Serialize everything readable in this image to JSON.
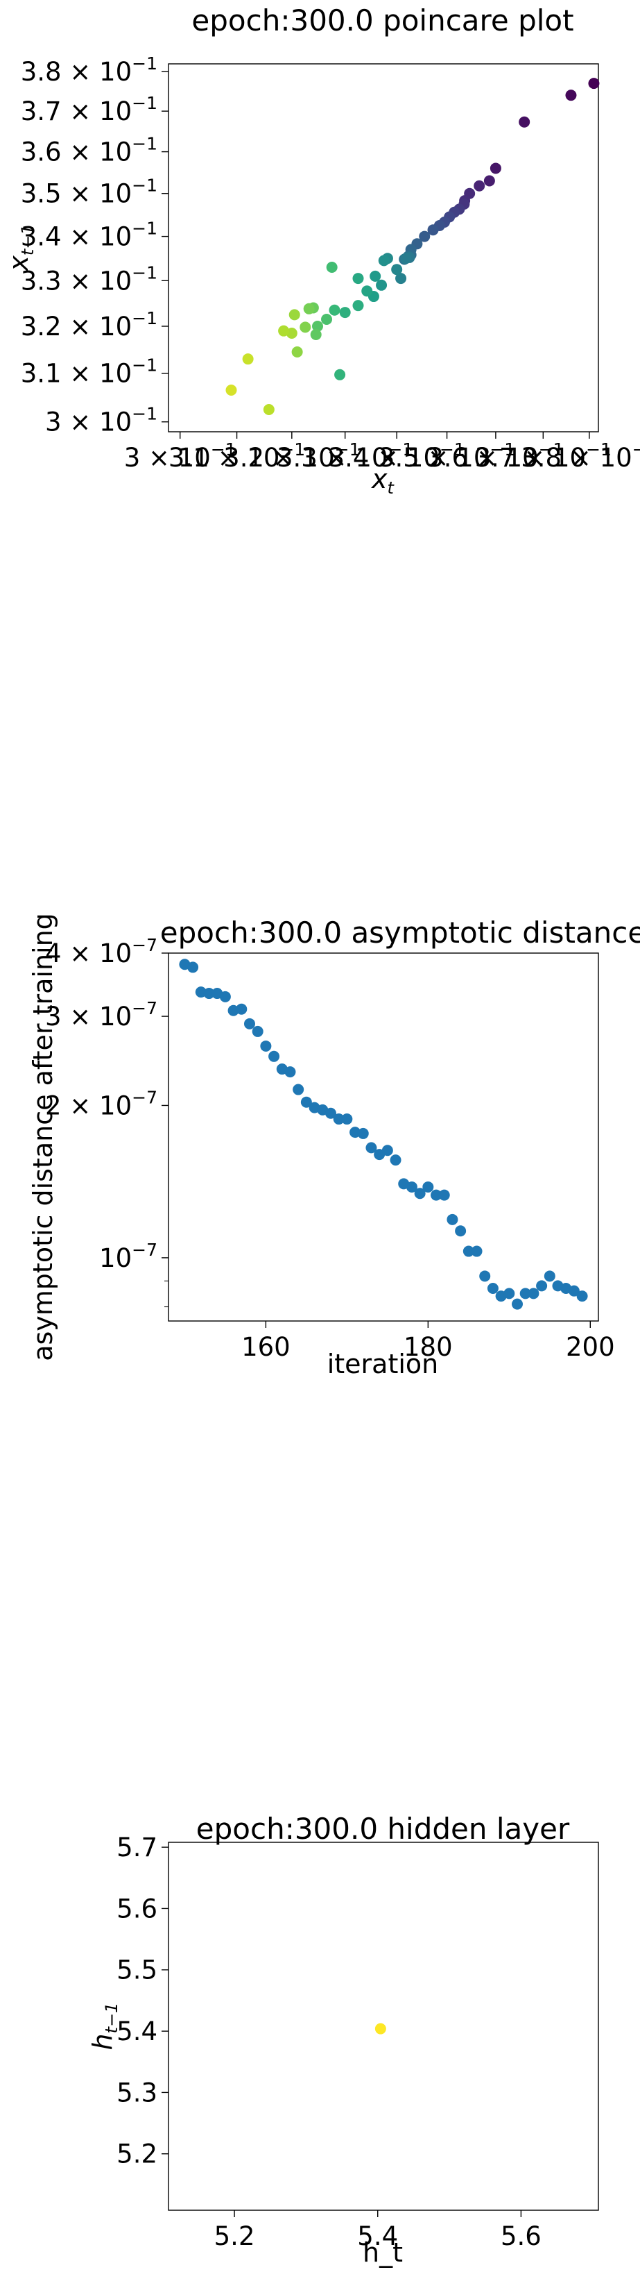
{
  "chart_data": [
    {
      "type": "scatter",
      "title": "epoch:300.0 poincare plot",
      "xlabel": "x_t",
      "ylabel": "x_{t-1}",
      "log_x": true,
      "log_y": true,
      "grid": false,
      "xlim": [
        0.298,
        0.382
      ],
      "ylim": [
        0.298,
        0.382
      ],
      "x_ticks": [
        "3 × 10^-1",
        "3.1 × 10^-1",
        "3.2 × 10^-1",
        "3.3 × 10^-1",
        "3.4 × 10^-1",
        "3.5 × 10^-1",
        "3.6 × 10^-1",
        "3.7 × 10^-1",
        "3.8 × 10^-1"
      ],
      "y_ticks": [
        "3.8 × 10^-1",
        "3.7 × 10^-1",
        "3.6 × 10^-1",
        "3.5 × 10^-1",
        "3.4 × 10^-1",
        "3.3 × 10^-1",
        "3.2 × 10^-1",
        "3.1 × 10^-1",
        "3 × 10^-1"
      ],
      "colormap": "viridis",
      "color_meaning": "point index (dark purple = early, yellow = late)",
      "points": [
        {
          "x": 0.381,
          "y": 0.377,
          "c": 0.0
        },
        {
          "x": 0.376,
          "y": 0.374,
          "c": 0.02
        },
        {
          "x": 0.366,
          "y": 0.3673,
          "c": 0.04
        },
        {
          "x": 0.36,
          "y": 0.356,
          "c": 0.06
        },
        {
          "x": 0.3587,
          "y": 0.353,
          "c": 0.08
        },
        {
          "x": 0.3566,
          "y": 0.3518,
          "c": 0.1
        },
        {
          "x": 0.3546,
          "y": 0.35,
          "c": 0.12
        },
        {
          "x": 0.3536,
          "y": 0.3483,
          "c": 0.13
        },
        {
          "x": 0.3535,
          "y": 0.3475,
          "c": 0.15
        },
        {
          "x": 0.3525,
          "y": 0.3463,
          "c": 0.17
        },
        {
          "x": 0.3515,
          "y": 0.3456,
          "c": 0.19
        },
        {
          "x": 0.3505,
          "y": 0.3445,
          "c": 0.21
        },
        {
          "x": 0.3495,
          "y": 0.3433,
          "c": 0.23
        },
        {
          "x": 0.3485,
          "y": 0.3425,
          "c": 0.25
        },
        {
          "x": 0.3472,
          "y": 0.3415,
          "c": 0.27
        },
        {
          "x": 0.3455,
          "y": 0.34,
          "c": 0.29
        },
        {
          "x": 0.344,
          "y": 0.3383,
          "c": 0.31
        },
        {
          "x": 0.3428,
          "y": 0.337,
          "c": 0.33
        },
        {
          "x": 0.3428,
          "y": 0.3358,
          "c": 0.35
        },
        {
          "x": 0.3423,
          "y": 0.3355,
          "c": 0.37
        },
        {
          "x": 0.3415,
          "y": 0.3348,
          "c": 0.38
        },
        {
          "x": 0.3425,
          "y": 0.3352,
          "c": 0.4
        },
        {
          "x": 0.3418,
          "y": 0.335,
          "c": 0.42
        },
        {
          "x": 0.3408,
          "y": 0.3305,
          "c": 0.44
        },
        {
          "x": 0.34,
          "y": 0.3325,
          "c": 0.46
        },
        {
          "x": 0.3382,
          "y": 0.335,
          "c": 0.48
        },
        {
          "x": 0.3375,
          "y": 0.3345,
          "c": 0.5
        },
        {
          "x": 0.337,
          "y": 0.329,
          "c": 0.52
        },
        {
          "x": 0.3358,
          "y": 0.331,
          "c": 0.54
        },
        {
          "x": 0.3355,
          "y": 0.3265,
          "c": 0.56
        },
        {
          "x": 0.3342,
          "y": 0.3277,
          "c": 0.58
        },
        {
          "x": 0.3325,
          "y": 0.3305,
          "c": 0.6
        },
        {
          "x": 0.3325,
          "y": 0.3245,
          "c": 0.62
        },
        {
          "x": 0.33,
          "y": 0.323,
          "c": 0.63
        },
        {
          "x": 0.329,
          "y": 0.3097,
          "c": 0.65
        },
        {
          "x": 0.328,
          "y": 0.3235,
          "c": 0.67
        },
        {
          "x": 0.3275,
          "y": 0.333,
          "c": 0.69
        },
        {
          "x": 0.3265,
          "y": 0.3215,
          "c": 0.71
        },
        {
          "x": 0.3248,
          "y": 0.32,
          "c": 0.73
        },
        {
          "x": 0.3245,
          "y": 0.3182,
          "c": 0.75
        },
        {
          "x": 0.324,
          "y": 0.324,
          "c": 0.77
        },
        {
          "x": 0.3232,
          "y": 0.3238,
          "c": 0.79
        },
        {
          "x": 0.3225,
          "y": 0.3198,
          "c": 0.81
        },
        {
          "x": 0.321,
          "y": 0.3145,
          "c": 0.83
        },
        {
          "x": 0.3205,
          "y": 0.3225,
          "c": 0.85
        },
        {
          "x": 0.32,
          "y": 0.3185,
          "c": 0.87
        },
        {
          "x": 0.3185,
          "y": 0.319,
          "c": 0.88
        },
        {
          "x": 0.3158,
          "y": 0.3025,
          "c": 0.9
        },
        {
          "x": 0.312,
          "y": 0.313,
          "c": 0.92
        },
        {
          "x": 0.309,
          "y": 0.3065,
          "c": 0.94
        }
      ]
    },
    {
      "type": "scatter",
      "title": "epoch:300.0 asymptotic distance",
      "xlabel": "iteration",
      "ylabel": "asymptotic distance after training",
      "log_y": true,
      "grid": false,
      "xlim": [
        148,
        201
      ],
      "ylim": [
        7.5e-08,
        4e-07
      ],
      "x_ticks": [
        "160",
        "180",
        "200"
      ],
      "y_ticks": [
        "4 × 10^-7",
        "3 × 10^-7",
        "2 × 10^-7",
        "10^-7"
      ],
      "color": "#1f77b4",
      "points": [
        {
          "x": 150,
          "y": 3.8e-07
        },
        {
          "x": 151,
          "y": 3.75e-07
        },
        {
          "x": 152,
          "y": 3.35e-07
        },
        {
          "x": 153,
          "y": 3.33e-07
        },
        {
          "x": 154,
          "y": 3.33e-07
        },
        {
          "x": 155,
          "y": 3.28e-07
        },
        {
          "x": 156,
          "y": 3.08e-07
        },
        {
          "x": 157,
          "y": 3.1e-07
        },
        {
          "x": 158,
          "y": 2.9e-07
        },
        {
          "x": 159,
          "y": 2.8e-07
        },
        {
          "x": 160,
          "y": 2.62e-07
        },
        {
          "x": 161,
          "y": 2.5e-07
        },
        {
          "x": 162,
          "y": 2.36e-07
        },
        {
          "x": 163,
          "y": 2.33e-07
        },
        {
          "x": 164,
          "y": 2.15e-07
        },
        {
          "x": 165,
          "y": 2.03e-07
        },
        {
          "x": 166,
          "y": 1.98e-07
        },
        {
          "x": 167,
          "y": 1.96e-07
        },
        {
          "x": 168,
          "y": 1.93e-07
        },
        {
          "x": 169,
          "y": 1.88e-07
        },
        {
          "x": 170,
          "y": 1.88e-07
        },
        {
          "x": 171,
          "y": 1.77e-07
        },
        {
          "x": 172,
          "y": 1.76e-07
        },
        {
          "x": 173,
          "y": 1.65e-07
        },
        {
          "x": 174,
          "y": 1.6e-07
        },
        {
          "x": 175,
          "y": 1.63e-07
        },
        {
          "x": 176,
          "y": 1.56e-07
        },
        {
          "x": 177,
          "y": 1.4e-07
        },
        {
          "x": 178,
          "y": 1.38e-07
        },
        {
          "x": 179,
          "y": 1.34e-07
        },
        {
          "x": 180,
          "y": 1.38e-07
        },
        {
          "x": 181,
          "y": 1.33e-07
        },
        {
          "x": 182,
          "y": 1.33e-07
        },
        {
          "x": 183,
          "y": 1.19e-07
        },
        {
          "x": 184,
          "y": 1.13e-07
        },
        {
          "x": 185,
          "y": 1.03e-07
        },
        {
          "x": 186,
          "y": 1.03e-07
        },
        {
          "x": 187,
          "y": 9.2e-08
        },
        {
          "x": 188,
          "y": 8.7e-08
        },
        {
          "x": 189,
          "y": 8.4e-08
        },
        {
          "x": 190,
          "y": 8.5e-08
        },
        {
          "x": 191,
          "y": 8.1e-08
        },
        {
          "x": 192,
          "y": 8.5e-08
        },
        {
          "x": 193,
          "y": 8.5e-08
        },
        {
          "x": 194,
          "y": 8.8e-08
        },
        {
          "x": 195,
          "y": 9.2e-08
        },
        {
          "x": 196,
          "y": 8.8e-08
        },
        {
          "x": 197,
          "y": 8.7e-08
        },
        {
          "x": 198,
          "y": 8.6e-08
        },
        {
          "x": 199,
          "y": 8.4e-08
        }
      ]
    },
    {
      "type": "scatter",
      "title": "epoch:300.0 hidden layer",
      "xlabel": "h_t",
      "ylabel": "h_{t-1}",
      "grid": false,
      "xlim": [
        5.108,
        5.708
      ],
      "ylim": [
        5.108,
        5.708
      ],
      "x_ticks": [
        "5.2",
        "5.4",
        "5.6"
      ],
      "y_ticks": [
        "5.7",
        "5.6",
        "5.5",
        "5.4",
        "5.3",
        "5.2"
      ],
      "color": "#fde725",
      "points": [
        {
          "x": 5.404,
          "y": 5.404
        }
      ]
    }
  ]
}
